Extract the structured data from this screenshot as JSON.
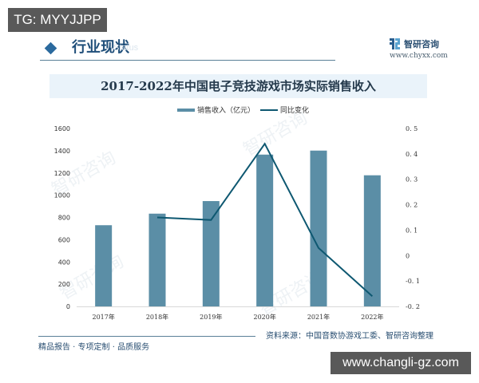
{
  "overlay": {
    "top_badge": "TG: MYYJJPP",
    "bottom_badge": "www.changli-gz.com"
  },
  "header": {
    "section_title": "行业现状",
    "section_watermark": "Status",
    "brand_name": "智研咨询",
    "brand_url": "www.chyxx.com"
  },
  "footer": {
    "slogan": "精品报告 · 专项定制 · 品质服务",
    "source": "资料来源：中国音数协游戏工委、智研咨询整理"
  },
  "watermark": {
    "text": "智研咨询"
  },
  "colors": {
    "bar": "#5b8ea6",
    "line": "#0e5871",
    "title_band": "#eaf3fa",
    "accent": "#2b6a9e"
  },
  "chart_data": {
    "type": "bar+line",
    "title": "2017-2022年中国电子竞技游戏市场实际销售收入",
    "categories": [
      "2017年",
      "2018年",
      "2019年",
      "2020年",
      "2021年",
      "2022年"
    ],
    "series": [
      {
        "name": "销售收入（亿元）",
        "type": "bar",
        "axis": "left",
        "values": [
          730,
          834,
          947,
          1365,
          1401,
          1179
        ]
      },
      {
        "name": "同比变化",
        "type": "line",
        "axis": "right",
        "values": [
          null,
          0.15,
          0.14,
          0.44,
          0.03,
          -0.16
        ]
      }
    ],
    "left_axis": {
      "ylim": [
        0,
        1600
      ],
      "ticks": [
        "0",
        "200",
        "400",
        "600",
        "800",
        "1000",
        "1200",
        "1400",
        "1600"
      ]
    },
    "right_axis": {
      "ylim": [
        -0.2,
        0.5
      ],
      "ticks": [
        "-0.2",
        "-0.1",
        "0",
        "0.1",
        "0.2",
        "0.3",
        "0.4",
        "0.5"
      ]
    },
    "xlabel": "",
    "ylabel": "",
    "grid": false,
    "legend_position": "top"
  }
}
